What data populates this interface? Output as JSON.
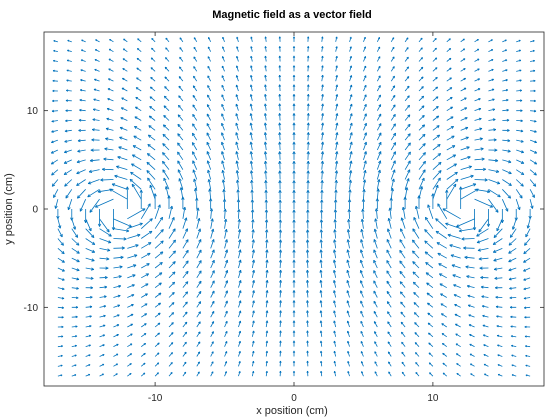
{
  "chart_data": {
    "type": "quiver",
    "title": "Magnetic field as a vector field",
    "xlabel": "x position (cm)",
    "ylabel": "y position (cm)",
    "xlim": [
      -18,
      18
    ],
    "ylim": [
      -18,
      18
    ],
    "xticks": [
      -10,
      0,
      10
    ],
    "yticks": [
      -10,
      0,
      10
    ],
    "xtick_labels": [
      "-10",
      "0",
      "10"
    ],
    "ytick_labels": [
      "-10",
      "0",
      "10"
    ],
    "grid": false,
    "color": "#0072bd",
    "field": {
      "grid_x": {
        "start": -17,
        "end": 17,
        "step": 1
      },
      "grid_y": {
        "start": -17,
        "end": 17,
        "step": 1
      },
      "sources": [
        {
          "x": -12.5,
          "y": 0,
          "current": 1
        },
        {
          "x": 12.5,
          "y": 0,
          "current": -1
        }
      ]
    }
  }
}
